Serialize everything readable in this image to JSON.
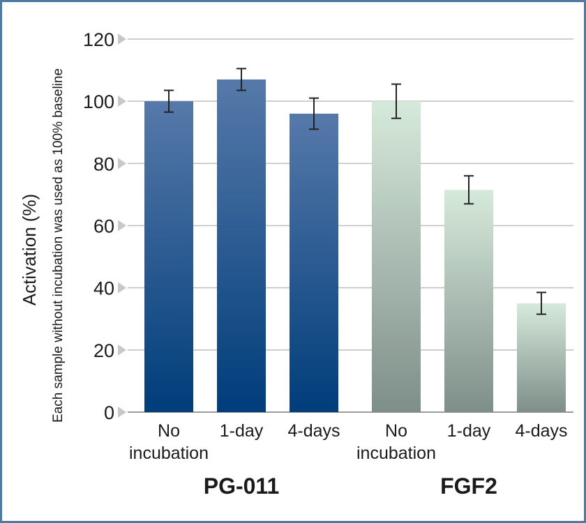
{
  "chart_data": {
    "type": "bar",
    "ylabel": "Activation (%)",
    "ylabel_sub": "Each sample without incubation was used as 100% baseline",
    "ylim": [
      0,
      120
    ],
    "yticks": [
      0,
      20,
      40,
      60,
      80,
      100,
      120
    ],
    "grid": true,
    "groups": [
      {
        "name": "PG-011",
        "colors": {
          "top": "#5679a9",
          "bottom": "#003d7a"
        },
        "bars": [
          {
            "category": [
              "No",
              "incubation"
            ],
            "value": 100,
            "error": 3.5
          },
          {
            "category": [
              "1-day"
            ],
            "value": 107,
            "error": 3.5
          },
          {
            "category": [
              "4-days"
            ],
            "value": 96,
            "error": 5
          }
        ]
      },
      {
        "name": "FGF2",
        "colors": {
          "top": "#d6eadb",
          "bottom": "#7e8e89"
        },
        "bars": [
          {
            "category": [
              "No",
              "incubation"
            ],
            "value": 100,
            "error": 5.5
          },
          {
            "category": [
              "1-day"
            ],
            "value": 71.5,
            "error": 4.5
          },
          {
            "category": [
              "4-days"
            ],
            "value": 35,
            "error": 3.5
          }
        ]
      }
    ]
  }
}
